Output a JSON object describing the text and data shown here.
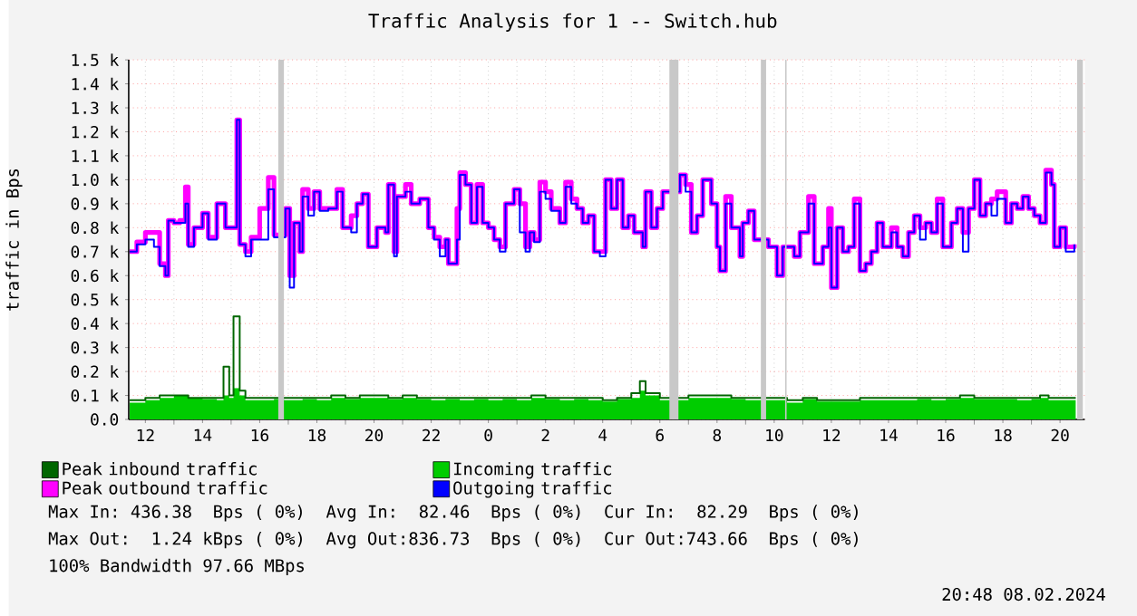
{
  "chart_data": {
    "type": "step",
    "title": "Traffic Analysis for 1 -- Switch.hub",
    "ylabel": "traffic in Bps",
    "xlim": [
      "2024-02-07T11:25",
      "2024-02-08T20:52"
    ],
    "ylim": [
      0,
      1.5
    ],
    "xticks": [
      {
        "value": "2024-02-07T12:00",
        "label": "12"
      },
      {
        "value": "2024-02-07T14:00",
        "label": "14"
      },
      {
        "value": "2024-02-07T16:00",
        "label": "16"
      },
      {
        "value": "2024-02-07T18:00",
        "label": "18"
      },
      {
        "value": "2024-02-07T20:00",
        "label": "20"
      },
      {
        "value": "2024-02-07T22:00",
        "label": "22"
      },
      {
        "value": "2024-02-08T00:00",
        "label": "0"
      },
      {
        "value": "2024-02-08T02:00",
        "label": "2"
      },
      {
        "value": "2024-02-08T04:00",
        "label": "4"
      },
      {
        "value": "2024-02-08T06:00",
        "label": "6"
      },
      {
        "value": "2024-02-08T08:00",
        "label": "8"
      },
      {
        "value": "2024-02-08T10:00",
        "label": "10"
      },
      {
        "value": "2024-02-08T12:00",
        "label": "12"
      },
      {
        "value": "2024-02-08T14:00",
        "label": "14"
      },
      {
        "value": "2024-02-08T16:00",
        "label": "16"
      },
      {
        "value": "2024-02-08T18:00",
        "label": "18"
      },
      {
        "value": "2024-02-08T20:00",
        "label": "20"
      }
    ],
    "yticks": [
      {
        "value": 0,
        "label": "0.0"
      },
      {
        "value": 0.1,
        "label": "0.1 k"
      },
      {
        "value": 0.2,
        "label": "0.2 k"
      },
      {
        "value": 0.3,
        "label": "0.3 k"
      },
      {
        "value": 0.4,
        "label": "0.4 k"
      },
      {
        "value": 0.5,
        "label": "0.5 k"
      },
      {
        "value": 0.6,
        "label": "0.6 k"
      },
      {
        "value": 0.7,
        "label": "0.7 k"
      },
      {
        "value": 0.8,
        "label": "0.8 k"
      },
      {
        "value": 0.9,
        "label": "0.9 k"
      },
      {
        "value": 1.0,
        "label": "1.0 k"
      },
      {
        "value": 1.1,
        "label": "1.1 k"
      },
      {
        "value": 1.2,
        "label": "1.2 k"
      },
      {
        "value": 1.3,
        "label": "1.3 k"
      },
      {
        "value": 1.4,
        "label": "1.4 k"
      },
      {
        "value": 1.5,
        "label": "1.5 k"
      }
    ],
    "grid": true,
    "legend": "bottom",
    "bands": [
      {
        "axis": "x",
        "from": "2024-02-07T16:39",
        "to": "2024-02-07T16:51",
        "color": "#c8c8c8"
      },
      {
        "axis": "x",
        "from": "2024-02-08T06:20",
        "to": "2024-02-08T06:39",
        "color": "#c8c8c8"
      },
      {
        "axis": "x",
        "from": "2024-02-08T09:32",
        "to": "2024-02-08T09:43",
        "color": "#c8c8c8"
      },
      {
        "axis": "x",
        "from": "2024-02-08T10:23",
        "to": "2024-02-08T10:26",
        "color": "#c8c8c8"
      },
      {
        "axis": "x",
        "from": "2024-02-08T20:36",
        "to": "2024-02-08T20:48",
        "color": "#c8c8c8"
      }
    ],
    "x": [
      "2024-02-07T11:27",
      "2024-02-07T11:42",
      "2024-02-07T12:00",
      "2024-02-07T12:18",
      "2024-02-07T12:30",
      "2024-02-07T12:42",
      "2024-02-07T12:48",
      "2024-02-07T13:00",
      "2024-02-07T13:12",
      "2024-02-07T13:24",
      "2024-02-07T13:30",
      "2024-02-07T13:42",
      "2024-02-07T14:00",
      "2024-02-07T14:12",
      "2024-02-07T14:30",
      "2024-02-07T14:48",
      "2024-02-07T15:12",
      "2024-02-07T15:18",
      "2024-02-07T15:30",
      "2024-02-07T15:42",
      "2024-02-07T16:00",
      "2024-02-07T16:18",
      "2024-02-07T16:30",
      "2024-02-07T16:42",
      "2024-02-07T16:54",
      "2024-02-07T17:03",
      "2024-02-07T17:12",
      "2024-02-07T17:24",
      "2024-02-07T17:30",
      "2024-02-07T17:42",
      "2024-02-07T17:54",
      "2024-02-07T18:06",
      "2024-02-07T18:24",
      "2024-02-07T18:42",
      "2024-02-07T18:54",
      "2024-02-07T19:12",
      "2024-02-07T19:24",
      "2024-02-07T19:36",
      "2024-02-07T19:48",
      "2024-02-07T20:06",
      "2024-02-07T20:24",
      "2024-02-07T20:30",
      "2024-02-07T20:42",
      "2024-02-07T20:48",
      "2024-02-07T21:06",
      "2024-02-07T21:18",
      "2024-02-07T21:36",
      "2024-02-07T21:54",
      "2024-02-07T22:06",
      "2024-02-07T22:18",
      "2024-02-07T22:30",
      "2024-02-07T22:36",
      "2024-02-07T22:54",
      "2024-02-07T23:00",
      "2024-02-07T23:12",
      "2024-02-07T23:24",
      "2024-02-07T23:36",
      "2024-02-07T23:48",
      "2024-02-08T00:00",
      "2024-02-08T00:12",
      "2024-02-08T00:24",
      "2024-02-08T00:36",
      "2024-02-08T00:54",
      "2024-02-08T01:06",
      "2024-02-08T01:18",
      "2024-02-08T01:27",
      "2024-02-08T01:36",
      "2024-02-08T01:48",
      "2024-02-08T02:00",
      "2024-02-08T02:12",
      "2024-02-08T02:30",
      "2024-02-08T02:42",
      "2024-02-08T02:54",
      "2024-02-08T03:06",
      "2024-02-08T03:18",
      "2024-02-08T03:30",
      "2024-02-08T03:42",
      "2024-02-08T03:54",
      "2024-02-08T04:06",
      "2024-02-08T04:18",
      "2024-02-08T04:30",
      "2024-02-08T04:42",
      "2024-02-08T04:54",
      "2024-02-08T05:06",
      "2024-02-08T05:24",
      "2024-02-08T05:30",
      "2024-02-08T05:42",
      "2024-02-08T05:54",
      "2024-02-08T06:06",
      "2024-02-08T06:18",
      "2024-02-08T06:42",
      "2024-02-08T06:54",
      "2024-02-08T07:06",
      "2024-02-08T07:18",
      "2024-02-08T07:30",
      "2024-02-08T07:48",
      "2024-02-08T08:00",
      "2024-02-08T08:06",
      "2024-02-08T08:18",
      "2024-02-08T08:30",
      "2024-02-08T08:48",
      "2024-02-08T08:54",
      "2024-02-08T09:06",
      "2024-02-08T09:18",
      "2024-02-08T09:48",
      "2024-02-08T10:06",
      "2024-02-08T10:18",
      "2024-02-08T10:42",
      "2024-02-08T10:54",
      "2024-02-08T11:12",
      "2024-02-08T11:24",
      "2024-02-08T11:42",
      "2024-02-08T11:54",
      "2024-02-08T12:00",
      "2024-02-08T12:12",
      "2024-02-08T12:24",
      "2024-02-08T12:36",
      "2024-02-08T12:48",
      "2024-02-08T13:00",
      "2024-02-08T13:12",
      "2024-02-08T13:24",
      "2024-02-08T13:36",
      "2024-02-08T13:48",
      "2024-02-08T14:06",
      "2024-02-08T14:18",
      "2024-02-08T14:30",
      "2024-02-08T14:42",
      "2024-02-08T14:54",
      "2024-02-08T15:06",
      "2024-02-08T15:18",
      "2024-02-08T15:30",
      "2024-02-08T15:42",
      "2024-02-08T15:54",
      "2024-02-08T16:12",
      "2024-02-08T16:24",
      "2024-02-08T16:36",
      "2024-02-08T16:48",
      "2024-02-08T17:00",
      "2024-02-08T17:12",
      "2024-02-08T17:24",
      "2024-02-08T17:36",
      "2024-02-08T17:48",
      "2024-02-08T18:06",
      "2024-02-08T18:18",
      "2024-02-08T18:30",
      "2024-02-08T18:42",
      "2024-02-08T18:54",
      "2024-02-08T19:06",
      "2024-02-08T19:18",
      "2024-02-08T19:30",
      "2024-02-08T19:42",
      "2024-02-08T19:48",
      "2024-02-08T20:00",
      "2024-02-08T20:12",
      "2024-02-08T20:30"
    ],
    "series": [
      {
        "name": "Peak inbound traffic",
        "color": "#006600",
        "x": [
          "2024-02-07T11:27",
          "2024-02-07T12:00",
          "2024-02-07T12:30",
          "2024-02-07T13:00",
          "2024-02-07T13:30",
          "2024-02-07T14:00",
          "2024-02-07T14:30",
          "2024-02-07T14:44",
          "2024-02-07T14:56",
          "2024-02-07T15:05",
          "2024-02-07T15:18",
          "2024-02-07T15:30",
          "2024-02-07T16:00",
          "2024-02-07T16:30",
          "2024-02-07T16:51",
          "2024-02-07T17:30",
          "2024-02-07T18:00",
          "2024-02-07T18:30",
          "2024-02-07T19:00",
          "2024-02-07T19:30",
          "2024-02-07T20:00",
          "2024-02-07T20:30",
          "2024-02-07T21:00",
          "2024-02-07T21:30",
          "2024-02-07T22:00",
          "2024-02-07T22:30",
          "2024-02-07T23:00",
          "2024-02-07T23:30",
          "2024-02-08T00:00",
          "2024-02-08T00:30",
          "2024-02-08T01:00",
          "2024-02-08T01:30",
          "2024-02-08T02:00",
          "2024-02-08T02:30",
          "2024-02-08T03:00",
          "2024-02-08T03:30",
          "2024-02-08T04:00",
          "2024-02-08T04:30",
          "2024-02-08T05:00",
          "2024-02-08T05:18",
          "2024-02-08T05:30",
          "2024-02-08T06:00",
          "2024-02-08T06:39",
          "2024-02-08T07:00",
          "2024-02-08T07:30",
          "2024-02-08T08:00",
          "2024-02-08T08:30",
          "2024-02-08T09:00",
          "2024-02-08T09:43",
          "2024-02-08T10:00",
          "2024-02-08T10:27",
          "2024-02-08T11:00",
          "2024-02-08T11:30",
          "2024-02-08T12:00",
          "2024-02-08T12:30",
          "2024-02-08T13:00",
          "2024-02-08T13:30",
          "2024-02-08T14:00",
          "2024-02-08T14:30",
          "2024-02-08T15:00",
          "2024-02-08T15:30",
          "2024-02-08T16:00",
          "2024-02-08T16:30",
          "2024-02-08T17:00",
          "2024-02-08T17:30",
          "2024-02-08T18:00",
          "2024-02-08T18:30",
          "2024-02-08T19:00",
          "2024-02-08T19:18",
          "2024-02-08T19:36",
          "2024-02-08T20:00",
          "2024-02-08T20:33"
        ],
        "values": [
          0.08,
          0.09,
          0.1,
          0.1,
          0.09,
          0.09,
          0.09,
          0.22,
          0.1,
          0.43,
          0.12,
          0.09,
          0.09,
          0.09,
          0.09,
          0.09,
          0.09,
          0.1,
          0.09,
          0.1,
          0.1,
          0.09,
          0.1,
          0.09,
          0.09,
          0.09,
          0.09,
          0.09,
          0.09,
          0.09,
          0.09,
          0.1,
          0.09,
          0.09,
          0.09,
          0.09,
          0.08,
          0.09,
          0.11,
          0.16,
          0.11,
          0.09,
          0.09,
          0.1,
          0.1,
          0.1,
          0.09,
          0.09,
          0.09,
          0.09,
          0.08,
          0.09,
          0.08,
          0.08,
          0.08,
          0.09,
          0.09,
          0.09,
          0.09,
          0.09,
          0.09,
          0.09,
          0.1,
          0.09,
          0.09,
          0.09,
          0.09,
          0.09,
          0.1,
          0.09,
          0.09,
          0.09
        ]
      },
      {
        "name": "Incoming traffic",
        "type": "area",
        "color": "#00cc00",
        "x": [
          "2024-02-07T11:27",
          "2024-02-07T12:00",
          "2024-02-07T12:30",
          "2024-02-07T13:00",
          "2024-02-07T13:30",
          "2024-02-07T14:00",
          "2024-02-07T14:30",
          "2024-02-07T14:44",
          "2024-02-07T14:56",
          "2024-02-07T15:05",
          "2024-02-07T15:18",
          "2024-02-07T15:30",
          "2024-02-07T16:00",
          "2024-02-07T16:30",
          "2024-02-07T16:51",
          "2024-02-07T17:30",
          "2024-02-07T18:00",
          "2024-02-07T18:30",
          "2024-02-07T19:00",
          "2024-02-07T19:30",
          "2024-02-07T20:00",
          "2024-02-07T20:30",
          "2024-02-07T21:00",
          "2024-02-07T21:30",
          "2024-02-07T22:00",
          "2024-02-07T22:30",
          "2024-02-07T23:00",
          "2024-02-07T23:30",
          "2024-02-08T00:00",
          "2024-02-08T00:30",
          "2024-02-08T01:00",
          "2024-02-08T01:30",
          "2024-02-08T02:00",
          "2024-02-08T02:30",
          "2024-02-08T03:00",
          "2024-02-08T03:30",
          "2024-02-08T04:00",
          "2024-02-08T04:30",
          "2024-02-08T05:00",
          "2024-02-08T05:18",
          "2024-02-08T05:30",
          "2024-02-08T06:00",
          "2024-02-08T06:39",
          "2024-02-08T07:00",
          "2024-02-08T07:30",
          "2024-02-08T08:00",
          "2024-02-08T08:30",
          "2024-02-08T09:00",
          "2024-02-08T09:43",
          "2024-02-08T10:00",
          "2024-02-08T10:27",
          "2024-02-08T11:00",
          "2024-02-08T11:30",
          "2024-02-08T12:00",
          "2024-02-08T12:30",
          "2024-02-08T13:00",
          "2024-02-08T13:30",
          "2024-02-08T14:00",
          "2024-02-08T14:30",
          "2024-02-08T15:00",
          "2024-02-08T15:30",
          "2024-02-08T16:00",
          "2024-02-08T16:30",
          "2024-02-08T17:00",
          "2024-02-08T17:30",
          "2024-02-08T18:00",
          "2024-02-08T18:30",
          "2024-02-08T19:00",
          "2024-02-08T19:18",
          "2024-02-08T19:36",
          "2024-02-08T20:00",
          "2024-02-08T20:33"
        ],
        "values": [
          0.07,
          0.08,
          0.09,
          0.1,
          0.09,
          0.085,
          0.08,
          0.1,
          0.09,
          0.13,
          0.1,
          0.08,
          0.08,
          0.085,
          0.08,
          0.085,
          0.08,
          0.09,
          0.085,
          0.09,
          0.09,
          0.085,
          0.09,
          0.085,
          0.08,
          0.085,
          0.08,
          0.085,
          0.08,
          0.085,
          0.08,
          0.09,
          0.085,
          0.08,
          0.085,
          0.08,
          0.075,
          0.085,
          0.09,
          0.12,
          0.1,
          0.08,
          0.08,
          0.09,
          0.09,
          0.09,
          0.085,
          0.08,
          0.08,
          0.08,
          0.07,
          0.085,
          0.075,
          0.075,
          0.075,
          0.08,
          0.08,
          0.08,
          0.08,
          0.085,
          0.08,
          0.085,
          0.09,
          0.085,
          0.085,
          0.085,
          0.08,
          0.085,
          0.09,
          0.08,
          0.08,
          0.08
        ]
      },
      {
        "name": "Peak outbound traffic",
        "color": "#ff00ff",
        "values": [
          0.7,
          0.74,
          0.78,
          0.78,
          0.65,
          0.6,
          0.83,
          0.82,
          0.83,
          0.97,
          0.73,
          0.8,
          0.86,
          0.76,
          0.9,
          0.8,
          1.25,
          0.73,
          0.7,
          0.76,
          0.88,
          1.01,
          0.77,
          0.77,
          0.88,
          0.6,
          0.82,
          0.7,
          0.96,
          0.88,
          0.95,
          0.88,
          0.88,
          0.96,
          0.8,
          0.85,
          0.9,
          0.94,
          0.72,
          0.8,
          0.78,
          0.98,
          0.7,
          0.93,
          0.98,
          0.9,
          0.92,
          0.8,
          0.76,
          0.72,
          0.75,
          0.65,
          0.88,
          1.03,
          0.98,
          0.82,
          0.98,
          0.82,
          0.8,
          0.75,
          0.72,
          0.9,
          0.96,
          0.9,
          0.72,
          0.78,
          0.75,
          0.99,
          0.95,
          0.88,
          0.82,
          0.99,
          0.92,
          0.88,
          0.82,
          0.85,
          0.7,
          0.7,
          1.0,
          0.88,
          1.0,
          0.8,
          0.85,
          0.78,
          0.72,
          0.95,
          0.8,
          0.88,
          0.95,
          0.95,
          1.02,
          0.98,
          0.78,
          0.85,
          1.0,
          0.9,
          0.72,
          0.62,
          0.93,
          0.8,
          0.68,
          0.82,
          0.87,
          0.75,
          0.72,
          0.6,
          0.72,
          0.68,
          0.78,
          0.93,
          0.65,
          0.72,
          0.88,
          0.55,
          0.8,
          0.7,
          0.72,
          0.92,
          0.62,
          0.65,
          0.7,
          0.82,
          0.72,
          0.8,
          0.72,
          0.68,
          0.78,
          0.85,
          0.8,
          0.82,
          0.78,
          0.92,
          0.72,
          0.82,
          0.88,
          0.78,
          0.88,
          1.0,
          0.85,
          0.9,
          0.92,
          0.95,
          0.82,
          0.9,
          0.88,
          0.93,
          0.88,
          0.85,
          0.82,
          1.04,
          0.98,
          0.72,
          0.8,
          0.72,
          0.73
        ]
      },
      {
        "name": "Outgoing traffic",
        "color": "#0000ff",
        "values": [
          0.7,
          0.73,
          0.75,
          0.72,
          0.64,
          0.6,
          0.83,
          0.82,
          0.82,
          0.9,
          0.72,
          0.8,
          0.86,
          0.75,
          0.9,
          0.8,
          1.25,
          0.73,
          0.68,
          0.75,
          0.75,
          0.96,
          0.76,
          0.76,
          0.88,
          0.55,
          0.82,
          0.7,
          0.93,
          0.85,
          0.95,
          0.87,
          0.88,
          0.95,
          0.8,
          0.78,
          0.9,
          0.94,
          0.72,
          0.8,
          0.78,
          0.98,
          0.68,
          0.93,
          0.95,
          0.9,
          0.92,
          0.8,
          0.75,
          0.68,
          0.75,
          0.65,
          0.75,
          1.02,
          0.98,
          0.82,
          0.97,
          0.82,
          0.8,
          0.75,
          0.7,
          0.9,
          0.96,
          0.78,
          0.7,
          0.78,
          0.74,
          0.95,
          0.92,
          0.87,
          0.82,
          0.97,
          0.9,
          0.88,
          0.82,
          0.85,
          0.7,
          0.68,
          1.0,
          0.88,
          1.0,
          0.8,
          0.85,
          0.78,
          0.72,
          0.95,
          0.8,
          0.88,
          0.95,
          0.95,
          1.02,
          0.95,
          0.78,
          0.85,
          1.0,
          0.9,
          0.72,
          0.62,
          0.9,
          0.8,
          0.68,
          0.82,
          0.87,
          0.75,
          0.72,
          0.6,
          0.72,
          0.68,
          0.78,
          0.9,
          0.65,
          0.72,
          0.8,
          0.55,
          0.8,
          0.7,
          0.72,
          0.9,
          0.62,
          0.65,
          0.7,
          0.82,
          0.72,
          0.78,
          0.72,
          0.68,
          0.78,
          0.85,
          0.75,
          0.82,
          0.78,
          0.9,
          0.72,
          0.82,
          0.88,
          0.7,
          0.88,
          1.0,
          0.85,
          0.9,
          0.85,
          0.92,
          0.82,
          0.9,
          0.88,
          0.93,
          0.88,
          0.85,
          0.82,
          1.03,
          0.98,
          0.72,
          0.8,
          0.7,
          0.73
        ]
      }
    ],
    "annotations": [
      "Max In: 436.38  Bps ( 0%)  Avg In:  82.46  Bps ( 0%)  Cur In:  82.29  Bps ( 0%)",
      "Max Out:  1.24 kBps ( 0%)  Avg Out:836.73  Bps ( 0%)  Cur Out:743.66  Bps ( 0%)",
      "100% Bandwidth 97.66 MBps",
      "20:48 08.02.2024"
    ]
  }
}
